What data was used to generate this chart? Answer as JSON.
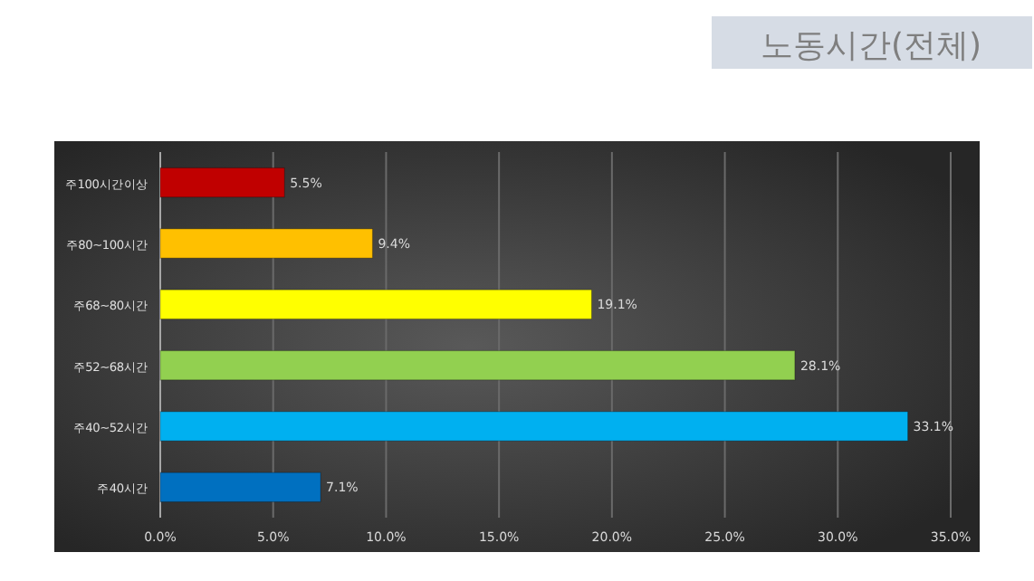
{
  "chart_data": {
    "type": "bar",
    "orientation": "horizontal",
    "title": "노동시간(전체)",
    "categories": [
      "주100시간이상",
      "주80~100시간",
      "주68~80시간",
      "주52~68시간",
      "주40~52시간",
      "주40시간"
    ],
    "values": [
      5.5,
      9.4,
      19.1,
      28.1,
      33.1,
      7.1
    ],
    "colors": [
      "#c00000",
      "#ffc000",
      "#ffff00",
      "#92d050",
      "#00b0f0",
      "#0070c0"
    ],
    "value_labels": [
      "5.5%",
      "9.4%",
      "19.1%",
      "28.1%",
      "33.1%",
      "7.1%"
    ],
    "xlim": [
      0,
      35
    ],
    "xticks": [
      {
        "value": 0,
        "label": "0.0%"
      },
      {
        "value": 5,
        "label": "5.0%"
      },
      {
        "value": 10,
        "label": "10.0%"
      },
      {
        "value": 15,
        "label": "15.0%"
      },
      {
        "value": 20,
        "label": "20.0%"
      },
      {
        "value": 25,
        "label": "25.0%"
      },
      {
        "value": 30,
        "label": "30.0%"
      },
      {
        "value": 35,
        "label": "35.0%"
      }
    ],
    "grid": "x"
  }
}
